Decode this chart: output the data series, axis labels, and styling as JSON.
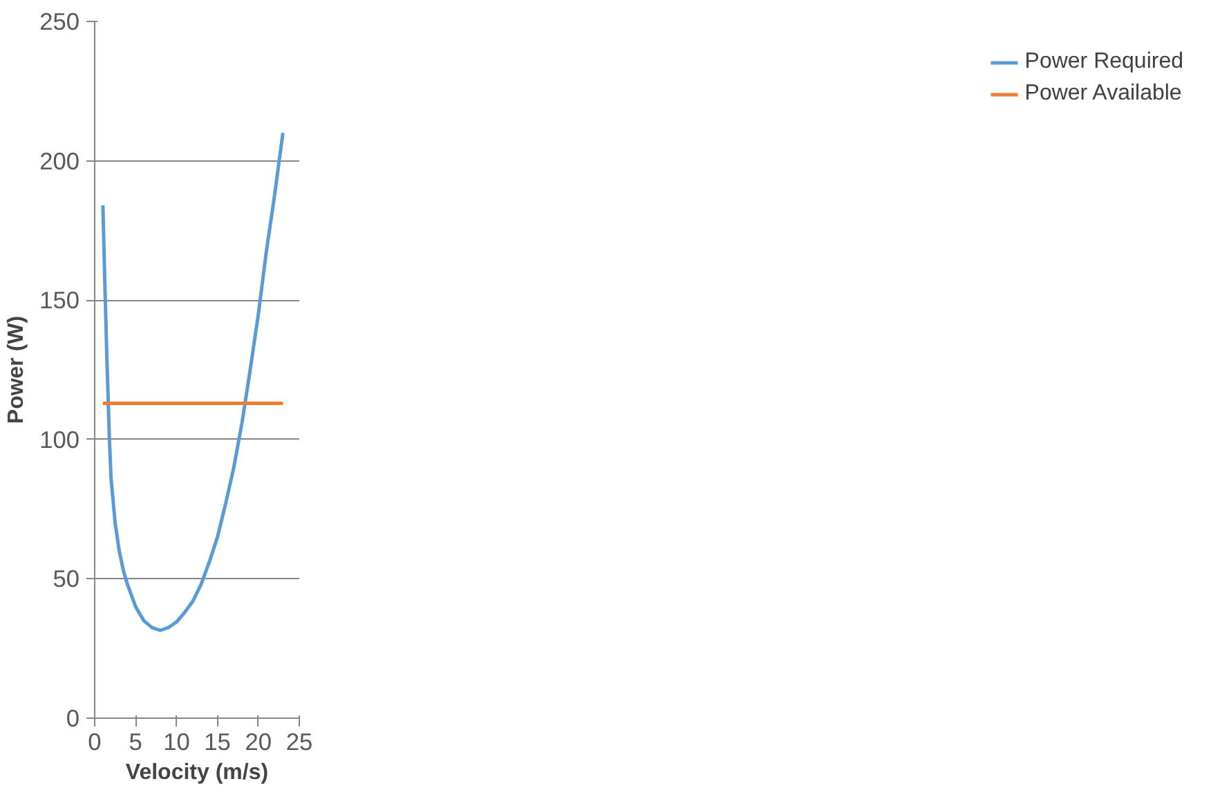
{
  "chart_data": {
    "type": "line",
    "xlabel": "Velocity (m/s)",
    "ylabel": "Power (W)",
    "xlim": [
      0,
      25
    ],
    "ylim": [
      0,
      250
    ],
    "xticks": [
      0,
      5,
      10,
      15,
      20,
      25
    ],
    "yticks": [
      0,
      50,
      100,
      150,
      200,
      250
    ],
    "grid": "y",
    "legend": "right",
    "marker": "none",
    "line_style": "solid",
    "series": [
      {
        "name": "Power Required",
        "color": "#5b9bd5",
        "x": [
          1,
          1.25,
          1.5,
          1.8,
          2,
          2.5,
          3,
          3.5,
          4,
          5,
          6,
          7,
          8,
          9,
          10,
          11,
          12,
          13,
          14,
          15,
          16,
          17,
          18,
          19,
          20,
          21,
          22,
          23
        ],
        "values": [
          184,
          155,
          128,
          100,
          86,
          70,
          60,
          53,
          48,
          40,
          35,
          32.5,
          31.5,
          32.5,
          34.5,
          38,
          42,
          48,
          56,
          65,
          77,
          90,
          106,
          125,
          145,
          168,
          188,
          210
        ]
      },
      {
        "name": "Power Available",
        "color": "#ed7d31",
        "x": [
          1,
          23
        ],
        "values": [
          113,
          113
        ]
      }
    ]
  }
}
